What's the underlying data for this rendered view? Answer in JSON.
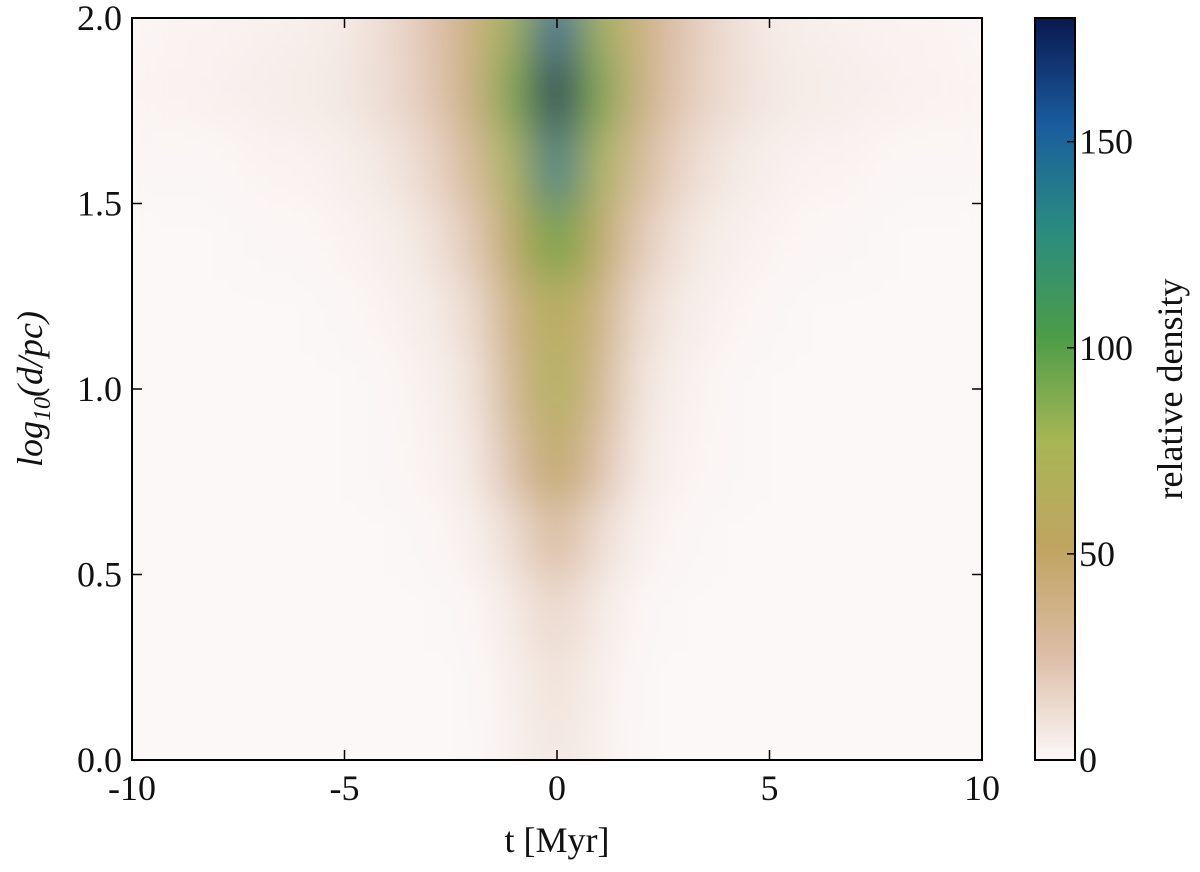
{
  "chart_data": {
    "type": "heatmap",
    "xlabel": "t [Myr]",
    "ylabel": [
      "log",
      "10",
      "(d/pc)"
    ],
    "colorbar_label": "relative density",
    "x": [
      -10,
      -9,
      -8,
      -7,
      -6,
      -5,
      -4,
      -3,
      -2,
      -1,
      0,
      1,
      2,
      3,
      4,
      5,
      6,
      7,
      8,
      9,
      10
    ],
    "y": [
      0.0,
      0.2,
      0.4,
      0.6,
      0.8,
      1.0,
      1.2,
      1.4,
      1.6,
      1.8,
      2.0
    ],
    "z": [
      [
        0,
        0,
        0,
        0,
        0,
        0,
        0,
        0,
        0,
        3,
        8,
        3,
        0,
        0,
        0,
        0,
        0,
        0,
        0,
        0,
        0
      ],
      [
        0,
        0,
        0,
        0,
        0,
        0,
        0,
        0,
        0,
        4,
        10,
        4,
        0,
        0,
        0,
        0,
        0,
        0,
        0,
        0,
        0
      ],
      [
        0,
        0,
        0,
        0,
        0,
        0,
        0,
        0,
        1,
        6,
        15,
        6,
        1,
        0,
        0,
        0,
        0,
        0,
        0,
        0,
        0
      ],
      [
        0,
        0,
        0,
        0,
        0,
        0,
        0,
        1,
        3,
        12,
        30,
        12,
        3,
        1,
        0,
        0,
        0,
        0,
        0,
        0,
        0
      ],
      [
        0,
        0,
        0,
        0,
        0,
        0,
        1,
        2,
        6,
        25,
        55,
        25,
        6,
        2,
        1,
        0,
        0,
        0,
        0,
        0,
        0
      ],
      [
        0,
        0,
        0,
        0,
        0,
        0,
        1,
        3,
        8,
        35,
        70,
        35,
        8,
        3,
        1,
        0,
        0,
        0,
        0,
        0,
        0
      ],
      [
        0,
        0,
        0,
        0,
        0,
        1,
        2,
        5,
        12,
        40,
        65,
        40,
        12,
        5,
        2,
        1,
        0,
        0,
        0,
        0,
        0
      ],
      [
        0,
        0,
        0,
        1,
        1,
        2,
        4,
        8,
        20,
        55,
        95,
        55,
        20,
        8,
        4,
        2,
        1,
        1,
        0,
        0,
        0
      ],
      [
        1,
        1,
        1,
        2,
        2,
        4,
        7,
        14,
        30,
        75,
        140,
        75,
        30,
        14,
        7,
        4,
        2,
        2,
        1,
        1,
        1
      ],
      [
        2,
        2,
        3,
        4,
        5,
        7,
        12,
        20,
        40,
        90,
        175,
        90,
        40,
        20,
        12,
        7,
        5,
        4,
        3,
        2,
        2
      ],
      [
        1,
        2,
        2,
        3,
        4,
        6,
        12,
        22,
        40,
        80,
        150,
        80,
        40,
        22,
        12,
        6,
        4,
        3,
        2,
        2,
        1
      ]
    ],
    "xlim": [
      -10,
      10
    ],
    "ylim": [
      0,
      2
    ],
    "xticks": [
      -10,
      -5,
      0,
      5,
      10
    ],
    "yticks": [
      {
        "value": 0,
        "label": "0.0"
      },
      0.5,
      {
        "value": 1,
        "label": "1.0"
      },
      1.5,
      {
        "value": 2,
        "label": "2.0"
      }
    ],
    "zlim": [
      0,
      180
    ],
    "zticks": [
      0,
      50,
      100,
      150
    ],
    "colormap": [
      "#fcf8f8",
      "#dcbca6",
      "#c0a460",
      "#a8b655",
      "#4c9c48",
      "#2a8c80",
      "#1a5c9e",
      "#0a1850"
    ]
  }
}
